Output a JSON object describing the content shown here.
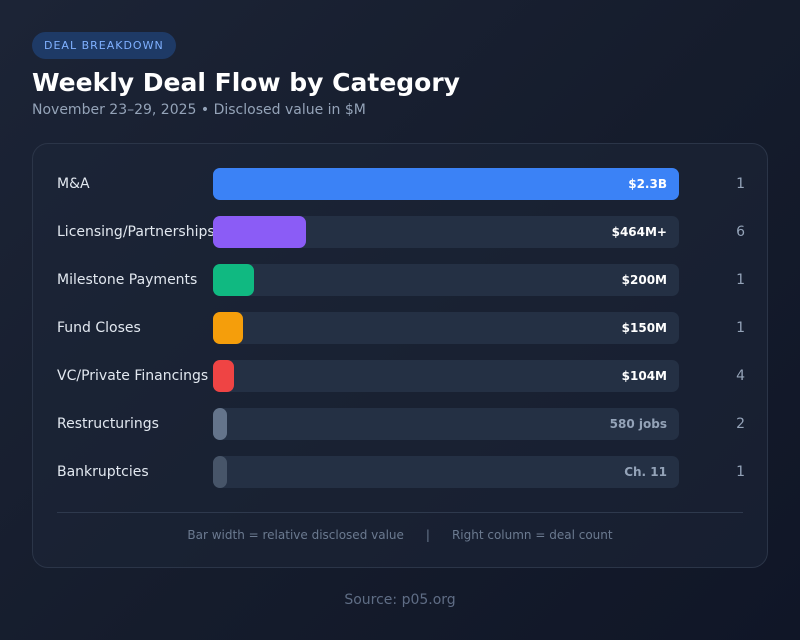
{
  "header": {
    "badge": "DEAL BREAKDOWN",
    "title": "Weekly Deal Flow by Category",
    "subtitle": "November 23–29, 2025 • Disclosed value in $M"
  },
  "chart_data": {
    "type": "bar",
    "orientation": "horizontal",
    "title": "Weekly Deal Flow by Category",
    "subtitle": "November 23–29, 2025 • Disclosed value in $M",
    "categories": [
      "M&A",
      "Licensing/Partnerships",
      "Milestone Payments",
      "Fund Closes",
      "VC/Private Financings",
      "Restructurings",
      "Bankruptcies"
    ],
    "values": [
      2300,
      464,
      200,
      150,
      104,
      null,
      null
    ],
    "value_labels": [
      "$2.3B",
      "$464M+",
      "$200M",
      "$150M",
      "$104M",
      "580 jobs",
      "Ch. 11"
    ],
    "fill_fractions": [
      1.0,
      0.2,
      0.087,
      0.065,
      0.045,
      0.03,
      0.03
    ],
    "deal_counts": [
      1,
      6,
      1,
      1,
      4,
      2,
      1
    ],
    "colors": [
      "#3b82f6",
      "#8b5cf6",
      "#10b981",
      "#f59e0b",
      "#ef4444",
      "#64748b",
      "#475569"
    ],
    "grid": false,
    "legend": "none"
  },
  "footer": {
    "note_left": "Bar width = relative disclosed value",
    "separator": "|",
    "note_right": "Right column = deal count",
    "source": "Source: p05.org"
  }
}
